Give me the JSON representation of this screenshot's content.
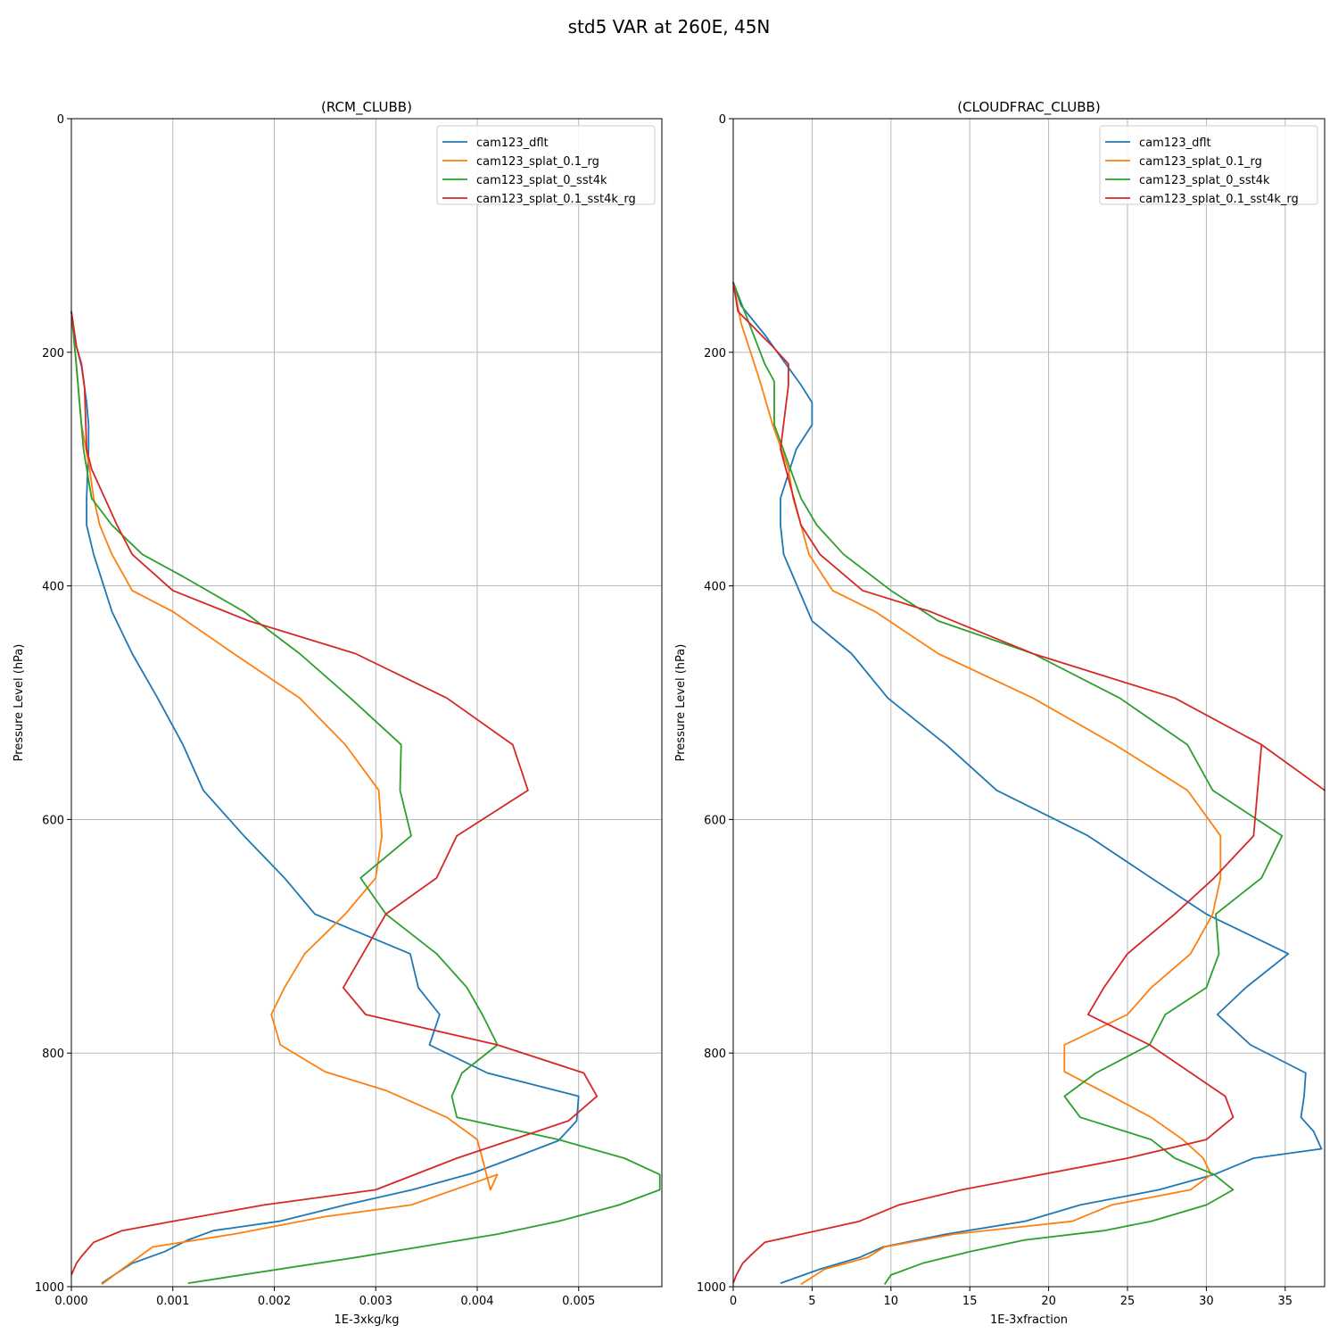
{
  "figure_title": "std5 VAR at 260E, 45N",
  "colors": {
    "cam123_dflt": "#1f77b4",
    "cam123_splat_0.1_rg": "#ff7f0e",
    "cam123_splat_0_sst4k": "#2ca02c",
    "cam123_splat_0.1_sst4k_rg": "#d62728"
  },
  "chart_data": [
    {
      "type": "line",
      "title": "(RCM_CLUBB)",
      "xlabel": "1E-3xkg/kg",
      "ylabel": "Pressure Level (hPa)",
      "xlim": [
        0,
        0.00582
      ],
      "ylim": [
        1000,
        0
      ],
      "y_inverted": true,
      "grid": true,
      "legend_position": "upper right",
      "xticks": [
        0,
        0.001,
        0.002,
        0.003,
        0.004,
        0.005
      ],
      "xtick_labels": [
        "0.000",
        "0.001",
        "0.002",
        "0.003",
        "0.004",
        "0.005"
      ],
      "yticks": [
        0,
        200,
        400,
        600,
        800,
        1000
      ],
      "ytick_labels": [
        "0",
        "200",
        "400",
        "600",
        "800",
        "1000"
      ],
      "series": [
        {
          "name": "cam123_dflt",
          "x": [
            0.0003,
            0.00042,
            0.0006,
            0.00092,
            0.00115,
            0.0014,
            0.00205,
            0.0027,
            0.00336,
            0.00395,
            0.00435,
            0.0048,
            0.00498,
            0.005,
            0.0041,
            0.00353,
            0.00363,
            0.00342,
            0.00334,
            0.0024,
            0.0021,
            0.0017,
            0.0013,
            0.0011,
            0.00085,
            0.0006,
            0.0004,
            0.00022,
            0.00015,
            0.00015,
            0.00017,
            0.00017,
            0.00015,
            0.0001,
            5e-05,
            0
          ],
          "y": [
            997,
            990,
            980,
            970,
            960,
            952,
            944,
            930,
            917,
            903,
            890,
            875,
            858,
            837,
            817,
            793,
            767,
            744,
            715,
            681,
            650,
            614,
            575,
            536,
            496,
            458,
            422,
            373,
            348,
            325,
            283,
            262,
            243,
            212,
            195,
            165
          ]
        },
        {
          "name": "cam123_splat_0.1_rg",
          "x": [
            0.0003,
            0.0005,
            0.0008,
            0.0016,
            0.0025,
            0.00335,
            0.0042,
            0.00413,
            0.00405,
            0.004,
            0.0037,
            0.0031,
            0.0025,
            0.00206,
            0.00197,
            0.0021,
            0.0023,
            0.0027,
            0.003,
            0.00306,
            0.00303,
            0.0027,
            0.00225,
            0.0016,
            0.001,
            0.0006,
            0.0004,
            0.00028,
            0.00022,
            0.00018,
            0.0001,
            5e-05,
            0
          ],
          "y": [
            998,
            985,
            966,
            955,
            940,
            930,
            904,
            917,
            890,
            874,
            855,
            832,
            816,
            793,
            767,
            744,
            715,
            681,
            650,
            614,
            575,
            536,
            496,
            458,
            422,
            404,
            373,
            348,
            325,
            300,
            262,
            212,
            165
          ]
        },
        {
          "name": "cam123_splat_0_sst4k",
          "x": [
            0.00115,
            0.0028,
            0.0042,
            0.0048,
            0.0054,
            0.0058,
            0.0058,
            0.00545,
            0.0048,
            0.0038,
            0.00375,
            0.00385,
            0.0042,
            0.00405,
            0.0039,
            0.0036,
            0.0031,
            0.00285,
            0.00335,
            0.00324,
            0.00325,
            0.00275,
            0.00225,
            0.0017,
            0.0011,
            0.0007,
            0.0004,
            0.0002,
            0.00012,
            8e-05,
            5e-05,
            0
          ],
          "y": [
            997,
            975,
            955,
            944,
            930,
            917,
            904,
            890,
            874,
            855,
            837,
            817,
            793,
            767,
            744,
            715,
            681,
            650,
            614,
            575,
            536,
            496,
            458,
            422,
            392,
            373,
            348,
            325,
            283,
            243,
            212,
            165
          ]
        },
        {
          "name": "cam123_splat_0.1_sst4k_rg",
          "x": [
            0,
            5e-05,
            0.0001,
            0.00022,
            0.0005,
            0.001,
            0.0019,
            0.003,
            0.0038,
            0.0049,
            0.00518,
            0.00505,
            0.0042,
            0.0029,
            0.00268,
            0.0031,
            0.0036,
            0.0038,
            0.0045,
            0.00435,
            0.0037,
            0.0028,
            0.00175,
            0.001,
            0.0006,
            0.00045,
            0.0002,
            0.00015,
            0.00013,
            0.0001,
            5e-05,
            0
          ],
          "y": [
            990,
            980,
            974,
            962,
            952,
            944,
            930,
            917,
            890,
            858,
            837,
            817,
            793,
            767,
            744,
            681,
            650,
            614,
            575,
            536,
            496,
            458,
            430,
            404,
            373,
            348,
            300,
            283,
            230,
            210,
            195,
            165
          ]
        }
      ]
    },
    {
      "type": "line",
      "title": "(CLOUDFRAC_CLUBB)",
      "xlabel": "1E-3xfraction",
      "ylabel": "Pressure Level (hPa)",
      "xlim": [
        0,
        37.5
      ],
      "ylim": [
        1000,
        0
      ],
      "y_inverted": true,
      "grid": true,
      "legend_position": "upper right",
      "xticks": [
        0,
        5,
        10,
        15,
        20,
        25,
        30,
        35
      ],
      "xtick_labels": [
        "0",
        "5",
        "10",
        "15",
        "20",
        "25",
        "30",
        "35"
      ],
      "yticks": [
        0,
        200,
        400,
        600,
        800,
        1000
      ],
      "ytick_labels": [
        "0",
        "200",
        "400",
        "600",
        "800",
        "1000"
      ],
      "series": [
        {
          "name": "cam123_dflt",
          "x": [
            3,
            5.5,
            8,
            9.5,
            13.5,
            18.5,
            22,
            27,
            30.5,
            33,
            37.3,
            36.8,
            36,
            36.2,
            36.3,
            32.8,
            30.7,
            32.5,
            35.2,
            30,
            26.5,
            22.5,
            16.7,
            13.5,
            9.8,
            7.5,
            5,
            3.2,
            3,
            3,
            4,
            5,
            5,
            4.3,
            2,
            0.5,
            0
          ],
          "y": [
            997,
            985,
            975,
            966,
            955,
            944,
            930,
            917,
            904,
            890,
            882,
            867,
            855,
            837,
            817,
            793,
            767,
            744,
            715,
            681,
            650,
            614,
            575,
            536,
            496,
            458,
            430,
            373,
            348,
            325,
            283,
            262,
            243,
            228,
            185,
            160,
            140
          ]
        },
        {
          "name": "cam123_splat_0.1_rg",
          "x": [
            4.3,
            5.8,
            8.5,
            9.6,
            14,
            21.5,
            24,
            29,
            30.3,
            29.8,
            28.5,
            26.5,
            24,
            21,
            21,
            25,
            26.5,
            29,
            30.4,
            30.9,
            30.9,
            28.8,
            24.2,
            19,
            13,
            9,
            6.3,
            4.8,
            4.3,
            3.8,
            3.5,
            2.5,
            1.7,
            0.5,
            0
          ],
          "y": [
            998,
            985,
            975,
            966,
            955,
            944,
            930,
            917,
            904,
            890,
            874,
            855,
            837,
            816,
            793,
            767,
            744,
            715,
            681,
            650,
            614,
            575,
            536,
            496,
            458,
            422,
            404,
            373,
            348,
            325,
            300,
            262,
            225,
            175,
            140
          ]
        },
        {
          "name": "cam123_splat_0_sst4k",
          "x": [
            9.6,
            10,
            12,
            15,
            18.5,
            23.5,
            26.5,
            30,
            31.7,
            30.5,
            28,
            26.5,
            22,
            21,
            23,
            26.4,
            27.4,
            30,
            30.8,
            30.6,
            33.5,
            34.8,
            30.4,
            28.8,
            24.5,
            19,
            13,
            10,
            7,
            5.3,
            4.3,
            2.6,
            2.6,
            2,
            1,
            0
          ],
          "y": [
            998,
            990,
            980,
            970,
            960,
            952,
            944,
            930,
            917,
            904,
            890,
            874,
            855,
            837,
            817,
            793,
            767,
            744,
            715,
            681,
            650,
            614,
            575,
            536,
            496,
            458,
            430,
            404,
            373,
            348,
            325,
            262,
            225,
            210,
            175,
            140
          ]
        },
        {
          "name": "cam123_splat_0.1_sst4k_rg",
          "x": [
            0,
            0.2,
            0.6,
            1.2,
            2,
            8,
            10.5,
            14.5,
            25,
            30,
            31.7,
            31.2,
            26.4,
            22.5,
            23.5,
            25,
            28,
            30.5,
            33,
            33.5,
            37.5,
            33.5,
            28,
            19,
            12.5,
            8.2,
            5.5,
            4.3,
            3,
            3.5,
            3.5,
            2.5,
            0.3,
            0
          ],
          "y": [
            997,
            990,
            980,
            972,
            962,
            944,
            930,
            917,
            890,
            874,
            855,
            837,
            793,
            767,
            744,
            715,
            681,
            650,
            614,
            536,
            575,
            536,
            496,
            458,
            422,
            404,
            373,
            348,
            283,
            228,
            210,
            195,
            165,
            140
          ]
        }
      ]
    }
  ]
}
